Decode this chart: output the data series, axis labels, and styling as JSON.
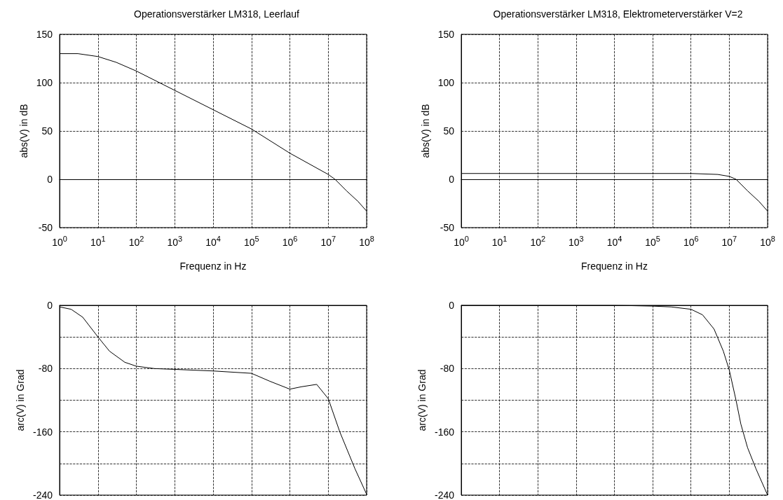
{
  "chart_data": [
    {
      "type": "line",
      "title": "Operationsverstärker LM318, Leerlauf",
      "xlabel": "Frequenz in Hz",
      "ylabel": "abs(V) in dB",
      "log": "x",
      "grid": true,
      "xlim": [
        1,
        100000000
      ],
      "ylim": [
        -50,
        150
      ],
      "xticks": [
        {
          "value": 1,
          "label": "10$^{0}$"
        },
        {
          "value": 10,
          "label": "10$^{1}$"
        },
        {
          "value": 100,
          "label": "10$^{2}$"
        },
        {
          "value": 1000,
          "label": "10$^{3}$"
        },
        {
          "value": 10000,
          "label": "10$^{4}$"
        },
        {
          "value": 100000,
          "label": "10$^{5}$"
        },
        {
          "value": 1000000,
          "label": "10$^{6}$"
        },
        {
          "value": 10000000,
          "label": "10$^{7}$"
        },
        {
          "value": 100000000,
          "label": "10$^{8}$"
        }
      ],
      "yticks": [
        -50,
        0,
        50,
        100,
        150
      ],
      "series": [
        {
          "color": "#000000",
          "x": [
            1,
            3,
            10,
            30,
            100,
            1000,
            10000,
            100000,
            1000000,
            10000000,
            15000000,
            30000000,
            60000000,
            100000000
          ],
          "values": [
            130,
            130,
            127,
            121,
            112,
            92,
            72,
            52,
            27,
            5,
            0,
            -12,
            -23,
            -33
          ]
        }
      ]
    },
    {
      "type": "line",
      "title": "Operationsverstärker LM318, Elektrometerverstärker V=2",
      "xlabel": "Frequenz in Hz",
      "ylabel": "abs(V) in dB",
      "log": "x",
      "grid": true,
      "xlim": [
        1,
        100000000
      ],
      "ylim": [
        -50,
        150
      ],
      "xticks": [
        {
          "value": 1,
          "label": "10$^{0}$"
        },
        {
          "value": 10,
          "label": "10$^{1}$"
        },
        {
          "value": 100,
          "label": "10$^{2}$"
        },
        {
          "value": 1000,
          "label": "10$^{3}$"
        },
        {
          "value": 10000,
          "label": "10$^{4}$"
        },
        {
          "value": 100000,
          "label": "10$^{5}$"
        },
        {
          "value": 1000000,
          "label": "10$^{6}$"
        },
        {
          "value": 10000000,
          "label": "10$^{7}$"
        },
        {
          "value": 100000000,
          "label": "10$^{8}$"
        }
      ],
      "yticks": [
        -50,
        0,
        50,
        100,
        150
      ],
      "series": [
        {
          "color": "#000000",
          "x": [
            1,
            100000,
            1000000,
            5000000,
            10000000,
            15000000,
            30000000,
            60000000,
            100000000
          ],
          "values": [
            6,
            6,
            6,
            5,
            3,
            0,
            -12,
            -23,
            -33
          ]
        }
      ]
    },
    {
      "type": "line",
      "ylabel": "arc(V) in Grad",
      "log": "x",
      "grid": true,
      "tick_labels": "y",
      "xlim": [
        1,
        100000000
      ],
      "ylim": [
        -240,
        0
      ],
      "xticks": [
        {
          "value": 1,
          "label": null
        },
        {
          "value": 10,
          "label": null
        },
        {
          "value": 100,
          "label": null
        },
        {
          "value": 1000,
          "label": null
        },
        {
          "value": 10000,
          "label": null
        },
        {
          "value": 100000,
          "label": null
        },
        {
          "value": 1000000,
          "label": null
        },
        {
          "value": 10000000,
          "label": null
        },
        {
          "value": 100000000,
          "label": null
        }
      ],
      "yticks": [
        -240,
        {
          "value": -200,
          "label": null
        },
        -160,
        {
          "value": -120,
          "label": null
        },
        -80,
        {
          "value": -40,
          "label": null
        },
        0
      ],
      "series": [
        {
          "color": "#000000",
          "x": [
            1,
            2,
            4,
            10,
            20,
            50,
            100,
            300,
            1000,
            10000,
            100000,
            300000,
            1000000,
            2000000,
            5000000,
            10000000,
            20000000,
            50000000,
            100000000
          ],
          "values": [
            -2,
            -5,
            -15,
            -40,
            -58,
            -72,
            -77,
            -80,
            -81,
            -83,
            -86,
            -96,
            -106,
            -103,
            -100,
            -118,
            -160,
            -207,
            -239
          ]
        }
      ]
    },
    {
      "type": "line",
      "ylabel": "arc(V) in Grad",
      "log": "x",
      "grid": true,
      "tick_labels": "y",
      "xlim": [
        1,
        100000000
      ],
      "ylim": [
        -240,
        0
      ],
      "xticks": [
        {
          "value": 1,
          "label": null
        },
        {
          "value": 10,
          "label": null
        },
        {
          "value": 100,
          "label": null
        },
        {
          "value": 1000,
          "label": null
        },
        {
          "value": 10000,
          "label": null
        },
        {
          "value": 100000,
          "label": null
        },
        {
          "value": 1000000,
          "label": null
        },
        {
          "value": 10000000,
          "label": null
        },
        {
          "value": 100000000,
          "label": null
        }
      ],
      "yticks": [
        -240,
        {
          "value": -200,
          "label": null
        },
        -160,
        {
          "value": -120,
          "label": null
        },
        -80,
        {
          "value": -40,
          "label": null
        },
        0
      ],
      "series": [
        {
          "color": "#000000",
          "x": [
            1,
            10000,
            100000,
            300000,
            1000000,
            2000000,
            4000000,
            7000000,
            10000000,
            15000000,
            20000000,
            30000000,
            50000000,
            100000000
          ],
          "values": [
            0,
            0,
            -1,
            -2,
            -5,
            -12,
            -30,
            -58,
            -82,
            -120,
            -150,
            -180,
            -207,
            -240
          ]
        }
      ]
    }
  ]
}
